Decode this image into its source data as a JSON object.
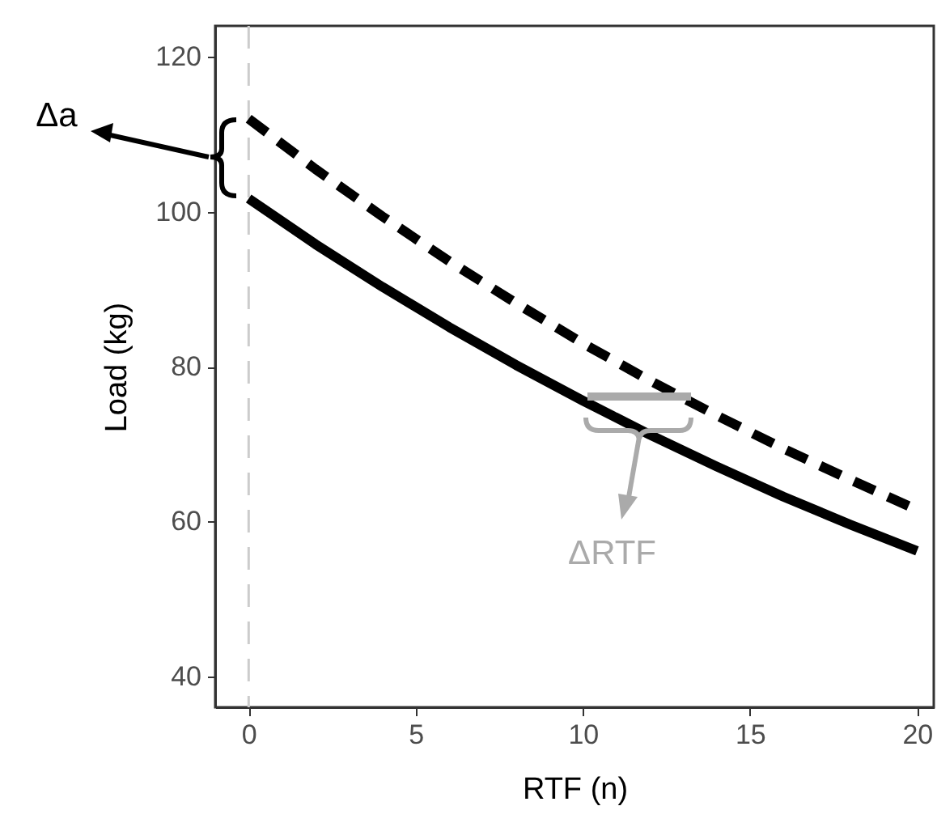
{
  "chart_data": {
    "type": "line",
    "xlabel": "RTF (n)",
    "ylabel": "Load (kg)",
    "x": [
      0,
      2,
      4,
      6,
      8,
      10,
      12,
      14,
      16,
      18,
      20
    ],
    "series": [
      {
        "color": "#000000",
        "line_style": "solid",
        "values": [
          101.7,
          95.8,
          90.3,
          85.1,
          80.2,
          75.6,
          71.2,
          67.1,
          63.2,
          59.6,
          56.2
        ]
      },
      {
        "color": "#000000",
        "line_style": "dashed",
        "values": [
          112,
          105.5,
          99.4,
          93.6,
          88.2,
          83.0,
          78.2,
          73.7,
          69.4,
          65.4,
          61.5
        ]
      }
    ],
    "xlim": [
      -1,
      20.5
    ],
    "xticks": [
      0,
      5,
      10,
      15,
      20
    ],
    "ylim": [
      36,
      124
    ],
    "yticks": [
      40,
      60,
      80,
      100,
      120
    ],
    "grid": false,
    "marker": "none",
    "ref_lines": [
      {
        "axis": "x",
        "value": 0,
        "color": "#cccccc",
        "line_style": "dashed"
      }
    ],
    "annotations": [
      "Δa",
      {
        "text": "ΔRTF",
        "x": 11.7,
        "y": 71
      }
    ]
  }
}
